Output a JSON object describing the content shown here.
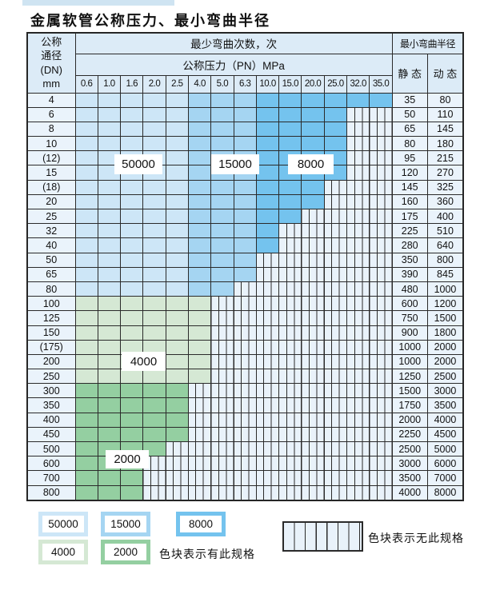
{
  "page": {
    "title": "金属软管公称压力、最小弯曲半径"
  },
  "table": {
    "header": {
      "dn_lines": [
        "公称",
        "通径",
        "(DN)",
        "mm"
      ],
      "bend_cycles": "最少弯曲次数，次",
      "pressure": "公称压力（PN）MPa",
      "pressures": [
        "0.6",
        "1.0",
        "1.6",
        "2.0",
        "2.5",
        "4.0",
        "5.0",
        "6.3",
        "10.0",
        "15.0",
        "20.0",
        "25.0",
        "32.0",
        "35.0"
      ],
      "min_radius": "最小弯曲半径",
      "static": "静 态",
      "dynamic": "动 态"
    },
    "rows": [
      {
        "dn": "4",
        "static": "35",
        "dynamic": "80",
        "last_col": 13,
        "family": "blue"
      },
      {
        "dn": "6",
        "static": "50",
        "dynamic": "110",
        "last_col": 11,
        "family": "blue"
      },
      {
        "dn": "8",
        "static": "65",
        "dynamic": "145",
        "last_col": 11,
        "family": "blue"
      },
      {
        "dn": "10",
        "static": "80",
        "dynamic": "180",
        "last_col": 11,
        "family": "blue"
      },
      {
        "dn": "(12)",
        "static": "95",
        "dynamic": "215",
        "last_col": 11,
        "family": "blue"
      },
      {
        "dn": "15",
        "static": "120",
        "dynamic": "270",
        "last_col": 11,
        "family": "blue"
      },
      {
        "dn": "(18)",
        "static": "145",
        "dynamic": "325",
        "last_col": 10,
        "family": "blue"
      },
      {
        "dn": "20",
        "static": "160",
        "dynamic": "360",
        "last_col": 10,
        "family": "blue"
      },
      {
        "dn": "25",
        "static": "175",
        "dynamic": "400",
        "last_col": 9,
        "family": "blue"
      },
      {
        "dn": "32",
        "static": "225",
        "dynamic": "510",
        "last_col": 8,
        "family": "blue"
      },
      {
        "dn": "40",
        "static": "280",
        "dynamic": "640",
        "last_col": 8,
        "family": "blue"
      },
      {
        "dn": "50",
        "static": "350",
        "dynamic": "800",
        "last_col": 7,
        "family": "blue"
      },
      {
        "dn": "65",
        "static": "390",
        "dynamic": "845",
        "last_col": 7,
        "family": "blue"
      },
      {
        "dn": "80",
        "static": "480",
        "dynamic": "1000",
        "last_col": 6,
        "family": "blue"
      },
      {
        "dn": "100",
        "static": "600",
        "dynamic": "1200",
        "last_col": 5,
        "family": "green-4000"
      },
      {
        "dn": "125",
        "static": "750",
        "dynamic": "1500",
        "last_col": 5,
        "family": "green-4000"
      },
      {
        "dn": "150",
        "static": "900",
        "dynamic": "1800",
        "last_col": 5,
        "family": "green-4000"
      },
      {
        "dn": "(175)",
        "static": "1000",
        "dynamic": "2000",
        "last_col": 5,
        "family": "green-4000"
      },
      {
        "dn": "200",
        "static": "1000",
        "dynamic": "2000",
        "last_col": 5,
        "family": "green-4000"
      },
      {
        "dn": "250",
        "static": "1250",
        "dynamic": "2500",
        "last_col": 5,
        "family": "green-4000"
      },
      {
        "dn": "300",
        "static": "1500",
        "dynamic": "3000",
        "last_col": 4,
        "family": "green-2000"
      },
      {
        "dn": "350",
        "static": "1750",
        "dynamic": "3500",
        "last_col": 4,
        "family": "green-2000"
      },
      {
        "dn": "400",
        "static": "2000",
        "dynamic": "4000",
        "last_col": 4,
        "family": "green-2000"
      },
      {
        "dn": "450",
        "static": "2250",
        "dynamic": "4500",
        "last_col": 4,
        "family": "green-2000"
      },
      {
        "dn": "500",
        "static": "2500",
        "dynamic": "5000",
        "last_col": 3,
        "family": "green-2000"
      },
      {
        "dn": "600",
        "static": "3000",
        "dynamic": "6000",
        "last_col": 2,
        "family": "green-2000"
      },
      {
        "dn": "700",
        "static": "3500",
        "dynamic": "7000",
        "last_col": 2,
        "family": "green-2000"
      },
      {
        "dn": "800",
        "static": "4000",
        "dynamic": "8000",
        "last_col": 2,
        "family": "green-2000"
      }
    ]
  },
  "overlays": {
    "cycles_50000": "50000",
    "cycles_15000": "15000",
    "cycles_8000": "8000",
    "cycles_4000": "4000",
    "cycles_2000": "2000"
  },
  "legend": {
    "items": [
      {
        "label": "50000"
      },
      {
        "label": "15000"
      },
      {
        "label": "8000"
      },
      {
        "label": "4000"
      },
      {
        "label": "2000"
      }
    ],
    "has_spec_text": "色块表示有此规格",
    "no_spec_text": "色块表示无此规格"
  },
  "colors": {
    "cycles_50000": "#cde6f7",
    "cycles_15000": "#a5d5f2",
    "cycles_8000": "#74c3ee",
    "cycles_4000": "#d5e8d4",
    "cycles_2000": "#94cfa1",
    "label_cell": "#eaf3fb",
    "header_cell": "#dcebf7",
    "grid_line": "#2a2a2a"
  }
}
